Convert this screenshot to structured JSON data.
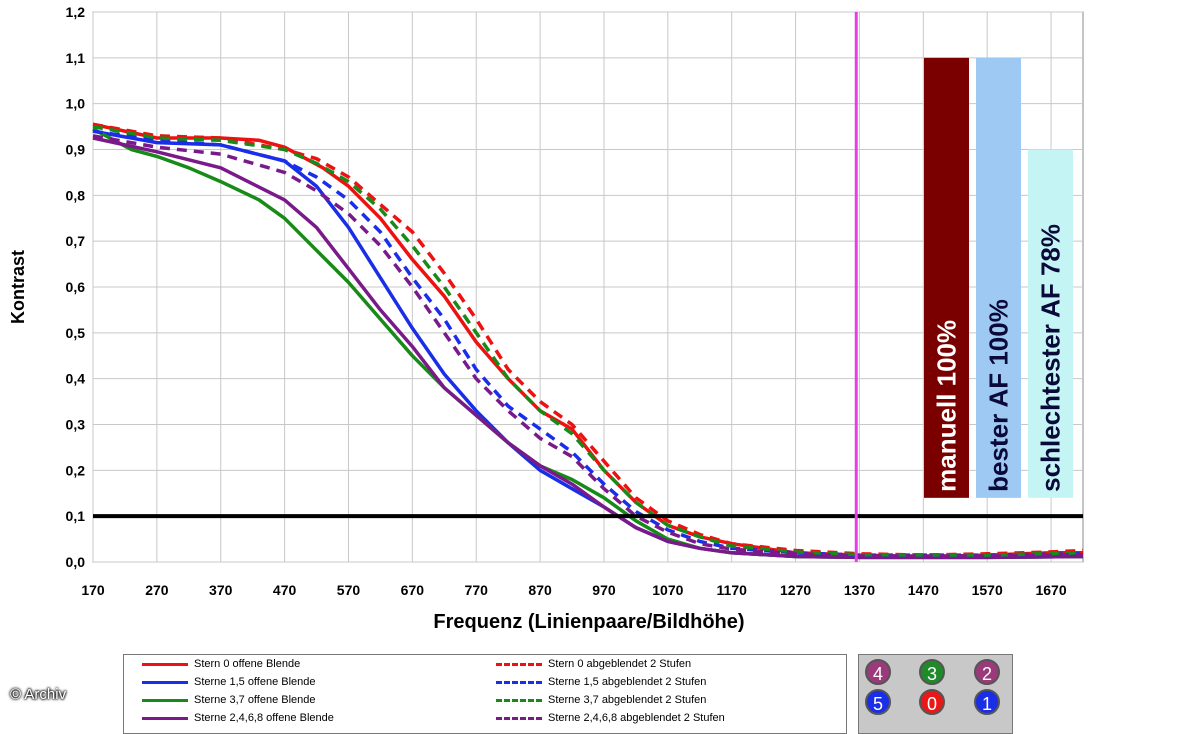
{
  "chart_data": {
    "type": "line",
    "xlabel": "Frequenz (Linienpaare/Bildhöhe)",
    "ylabel": "Kontrast",
    "xlim": [
      170,
      1720
    ],
    "ylim": [
      0,
      1.2
    ],
    "x_ticks": [
      "170",
      "270",
      "370",
      "470",
      "570",
      "670",
      "770",
      "870",
      "970",
      "1070",
      "1170",
      "1270",
      "1370",
      "1470",
      "1570",
      "1670"
    ],
    "y_ticks": [
      "0,0",
      "0,1",
      "0,2",
      "0,3",
      "0,4",
      "0,5",
      "0,6",
      "0,7",
      "0,8",
      "0,9",
      "1,0",
      "1,1",
      "1,2"
    ],
    "threshold_line": 0.1,
    "vertical_line_x": 1365,
    "series": [
      {
        "name": "Stern 0 offene Blende",
        "color": "#ee1111",
        "dash": false,
        "points": [
          [
            170,
            0.955
          ],
          [
            270,
            0.925
          ],
          [
            370,
            0.925
          ],
          [
            430,
            0.92
          ],
          [
            470,
            0.905
          ],
          [
            530,
            0.86
          ],
          [
            570,
            0.82
          ],
          [
            620,
            0.75
          ],
          [
            670,
            0.66
          ],
          [
            720,
            0.58
          ],
          [
            770,
            0.48
          ],
          [
            820,
            0.4
          ],
          [
            870,
            0.33
          ],
          [
            920,
            0.29
          ],
          [
            970,
            0.2
          ],
          [
            1020,
            0.13
          ],
          [
            1070,
            0.08
          ],
          [
            1120,
            0.055
          ],
          [
            1170,
            0.04
          ],
          [
            1270,
            0.02
          ],
          [
            1370,
            0.015
          ],
          [
            1470,
            0.012
          ],
          [
            1570,
            0.015
          ],
          [
            1670,
            0.02
          ],
          [
            1720,
            0.02
          ]
        ]
      },
      {
        "name": "Sterne 1,5 offene Blende",
        "color": "#1a2ee8",
        "dash": false,
        "points": [
          [
            170,
            0.94
          ],
          [
            270,
            0.915
          ],
          [
            370,
            0.91
          ],
          [
            470,
            0.875
          ],
          [
            520,
            0.82
          ],
          [
            570,
            0.73
          ],
          [
            620,
            0.62
          ],
          [
            670,
            0.51
          ],
          [
            720,
            0.41
          ],
          [
            770,
            0.33
          ],
          [
            820,
            0.26
          ],
          [
            870,
            0.2
          ],
          [
            920,
            0.16
          ],
          [
            970,
            0.12
          ],
          [
            1020,
            0.075
          ],
          [
            1070,
            0.045
          ],
          [
            1120,
            0.03
          ],
          [
            1170,
            0.02
          ],
          [
            1270,
            0.012
          ],
          [
            1370,
            0.01
          ],
          [
            1570,
            0.01
          ],
          [
            1720,
            0.012
          ]
        ]
      },
      {
        "name": "Sterne 3,7 offene Blende",
        "color": "#178a17",
        "dash": false,
        "points": [
          [
            170,
            0.945
          ],
          [
            230,
            0.9
          ],
          [
            270,
            0.885
          ],
          [
            320,
            0.86
          ],
          [
            370,
            0.83
          ],
          [
            430,
            0.79
          ],
          [
            470,
            0.75
          ],
          [
            520,
            0.68
          ],
          [
            570,
            0.61
          ],
          [
            620,
            0.53
          ],
          [
            670,
            0.45
          ],
          [
            720,
            0.38
          ],
          [
            770,
            0.32
          ],
          [
            820,
            0.26
          ],
          [
            870,
            0.21
          ],
          [
            920,
            0.18
          ],
          [
            970,
            0.14
          ],
          [
            1020,
            0.09
          ],
          [
            1070,
            0.05
          ],
          [
            1120,
            0.03
          ],
          [
            1170,
            0.02
          ],
          [
            1270,
            0.012
          ],
          [
            1370,
            0.01
          ],
          [
            1570,
            0.01
          ],
          [
            1720,
            0.012
          ]
        ]
      },
      {
        "name": "Sterne 2,4,6,8 offene Blende",
        "color": "#7a1a8a",
        "dash": false,
        "points": [
          [
            170,
            0.925
          ],
          [
            270,
            0.895
          ],
          [
            370,
            0.86
          ],
          [
            470,
            0.79
          ],
          [
            520,
            0.73
          ],
          [
            570,
            0.64
          ],
          [
            620,
            0.55
          ],
          [
            670,
            0.47
          ],
          [
            720,
            0.38
          ],
          [
            770,
            0.32
          ],
          [
            820,
            0.26
          ],
          [
            870,
            0.21
          ],
          [
            920,
            0.17
          ],
          [
            970,
            0.12
          ],
          [
            1020,
            0.075
          ],
          [
            1070,
            0.045
          ],
          [
            1120,
            0.03
          ],
          [
            1170,
            0.02
          ],
          [
            1270,
            0.012
          ],
          [
            1370,
            0.01
          ],
          [
            1570,
            0.01
          ],
          [
            1720,
            0.012
          ]
        ]
      },
      {
        "name": "Stern 0 abgeblendet 2 Stufen",
        "color": "#ee1111",
        "dash": true,
        "points": [
          [
            170,
            0.955
          ],
          [
            270,
            0.93
          ],
          [
            370,
            0.925
          ],
          [
            470,
            0.9
          ],
          [
            520,
            0.88
          ],
          [
            570,
            0.84
          ],
          [
            620,
            0.78
          ],
          [
            670,
            0.72
          ],
          [
            720,
            0.63
          ],
          [
            770,
            0.53
          ],
          [
            820,
            0.42
          ],
          [
            870,
            0.35
          ],
          [
            920,
            0.3
          ],
          [
            970,
            0.22
          ],
          [
            1020,
            0.14
          ],
          [
            1070,
            0.09
          ],
          [
            1120,
            0.06
          ],
          [
            1170,
            0.04
          ],
          [
            1270,
            0.025
          ],
          [
            1370,
            0.018
          ],
          [
            1470,
            0.015
          ],
          [
            1570,
            0.018
          ],
          [
            1670,
            0.022
          ],
          [
            1720,
            0.025
          ]
        ]
      },
      {
        "name": "Sterne 1,5 abgeblendet 2 Stufen",
        "color": "#1a2ee8",
        "dash": true,
        "points": [
          [
            170,
            0.94
          ],
          [
            270,
            0.92
          ],
          [
            370,
            0.91
          ],
          [
            470,
            0.875
          ],
          [
            520,
            0.84
          ],
          [
            570,
            0.79
          ],
          [
            620,
            0.72
          ],
          [
            670,
            0.62
          ],
          [
            720,
            0.53
          ],
          [
            770,
            0.42
          ],
          [
            820,
            0.34
          ],
          [
            870,
            0.29
          ],
          [
            920,
            0.24
          ],
          [
            970,
            0.17
          ],
          [
            1020,
            0.11
          ],
          [
            1070,
            0.07
          ],
          [
            1120,
            0.045
          ],
          [
            1170,
            0.03
          ],
          [
            1270,
            0.02
          ],
          [
            1370,
            0.015
          ],
          [
            1570,
            0.015
          ],
          [
            1720,
            0.018
          ]
        ]
      },
      {
        "name": "Sterne 3,7 abgeblendet 2 Stufen",
        "color": "#178a17",
        "dash": true,
        "points": [
          [
            170,
            0.95
          ],
          [
            270,
            0.925
          ],
          [
            370,
            0.92
          ],
          [
            470,
            0.9
          ],
          [
            520,
            0.87
          ],
          [
            570,
            0.83
          ],
          [
            620,
            0.77
          ],
          [
            670,
            0.69
          ],
          [
            720,
            0.6
          ],
          [
            770,
            0.5
          ],
          [
            820,
            0.4
          ],
          [
            870,
            0.33
          ],
          [
            920,
            0.28
          ],
          [
            970,
            0.2
          ],
          [
            1020,
            0.13
          ],
          [
            1070,
            0.08
          ],
          [
            1120,
            0.055
          ],
          [
            1170,
            0.035
          ],
          [
            1270,
            0.022
          ],
          [
            1370,
            0.016
          ],
          [
            1570,
            0.015
          ],
          [
            1720,
            0.02
          ]
        ]
      },
      {
        "name": "Sterne 2,4,6,8 abgeblendet 2 Stufen",
        "color": "#7a1a8a",
        "dash": true,
        "points": [
          [
            170,
            0.93
          ],
          [
            270,
            0.905
          ],
          [
            370,
            0.89
          ],
          [
            470,
            0.85
          ],
          [
            520,
            0.81
          ],
          [
            570,
            0.76
          ],
          [
            620,
            0.69
          ],
          [
            670,
            0.6
          ],
          [
            720,
            0.5
          ],
          [
            770,
            0.4
          ],
          [
            820,
            0.33
          ],
          [
            870,
            0.27
          ],
          [
            920,
            0.23
          ],
          [
            970,
            0.16
          ],
          [
            1020,
            0.1
          ],
          [
            1070,
            0.065
          ],
          [
            1120,
            0.04
          ],
          [
            1170,
            0.028
          ],
          [
            1270,
            0.018
          ],
          [
            1370,
            0.013
          ],
          [
            1570,
            0.013
          ],
          [
            1720,
            0.016
          ]
        ]
      }
    ],
    "bars": [
      {
        "label": "manuell 100%",
        "value": 1.1,
        "bottom": 0.14,
        "color": "#7a0000"
      },
      {
        "label": "bester AF 100%",
        "value": 1.1,
        "bottom": 0.14,
        "color": "#9ec9f2"
      },
      {
        "label": "schlechtester AF 78%",
        "value": 0.9,
        "bottom": 0.14,
        "color": "#c4f4f4"
      }
    ]
  },
  "legend": [
    {
      "label": "Stern 0 offene Blende",
      "color": "#ee1111",
      "style": "solid"
    },
    {
      "label": "Sterne 1,5 offene Blende",
      "color": "#1a2ee8",
      "style": "solid"
    },
    {
      "label": "Sterne 3,7 offene Blende",
      "color": "#178a17",
      "style": "solid"
    },
    {
      "label": "Sterne 2,4,6,8 offene Blende",
      "color": "#7a1a8a",
      "style": "solid"
    },
    {
      "label": "Stern 0 abgeblendet 2 Stufen",
      "color": "#ee1111",
      "style": "dashed"
    },
    {
      "label": "Sterne 1,5 abgeblendet 2 Stufen",
      "color": "#1a2ee8",
      "style": "dashed"
    },
    {
      "label": "Sterne 3,7 abgeblendet 2 Stufen",
      "color": "#178a17",
      "style": "dashed"
    },
    {
      "label": "Sterne 2,4,6,8 abgeblendet 2 Stufen",
      "color": "#7a1a8a",
      "style": "dashed"
    }
  ],
  "stars": [
    {
      "label": "4",
      "color": "#9a3a7a"
    },
    {
      "label": "3",
      "color": "#1f8a2a"
    },
    {
      "label": "2",
      "color": "#9a3a7a"
    },
    {
      "label": "5",
      "color": "#1a2ee8"
    },
    {
      "label": "0",
      "color": "#e81818"
    },
    {
      "label": "1",
      "color": "#1a2ee8"
    }
  ],
  "copyright": "© Archiv"
}
